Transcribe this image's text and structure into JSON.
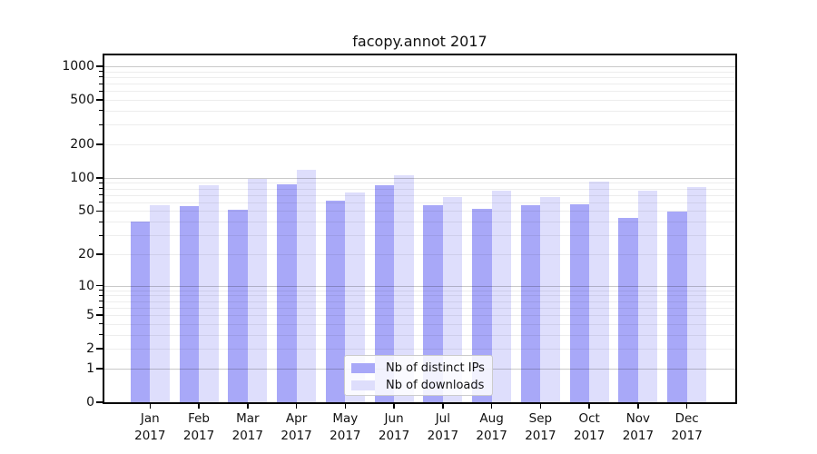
{
  "title": "facopy.annot 2017",
  "chart_data": {
    "type": "bar",
    "title": "facopy.annot 2017",
    "months": [
      "Jan",
      "Feb",
      "Mar",
      "Apr",
      "May",
      "Jun",
      "Jul",
      "Aug",
      "Sep",
      "Oct",
      "Nov",
      "Dec"
    ],
    "year": "2017",
    "categories": [
      "Jan 2017",
      "Feb 2017",
      "Mar 2017",
      "Apr 2017",
      "May 2017",
      "Jun 2017",
      "Jul 2017",
      "Aug 2017",
      "Sep 2017",
      "Oct 2017",
      "Nov 2017",
      "Dec 2017"
    ],
    "series": [
      {
        "name": "Nb of distinct IPs",
        "color": "#a8a8f8",
        "values": [
          40,
          55,
          51,
          87,
          62,
          86,
          56,
          52,
          56,
          58,
          43,
          49
        ]
      },
      {
        "name": "Nb of downloads",
        "color": "#dedefc",
        "values": [
          57,
          85,
          97,
          118,
          74,
          105,
          67,
          77,
          67,
          92,
          76,
          83
        ]
      }
    ],
    "y_ticks": [
      0,
      1,
      2,
      5,
      10,
      20,
      50,
      100,
      200,
      500,
      1000
    ],
    "y_tick_labels": [
      "0",
      "1",
      "2",
      "5",
      "10",
      "20",
      "50",
      "100",
      "200",
      "500",
      "1000"
    ],
    "y_scale": "log1p",
    "ylim": [
      0,
      1250
    ],
    "xlabel": "",
    "ylabel": "",
    "grid": true,
    "legend_position": "lower center"
  }
}
